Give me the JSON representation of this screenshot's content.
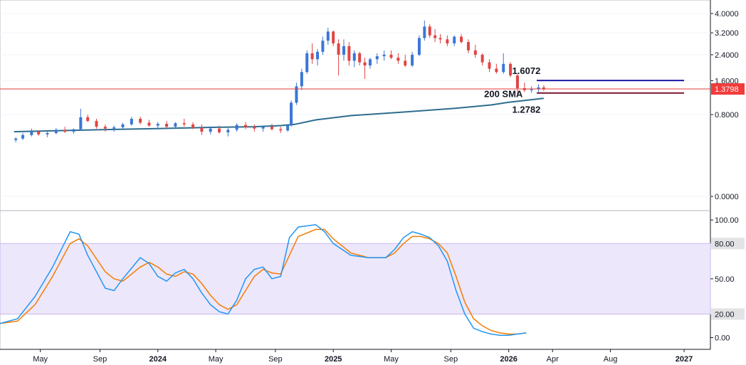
{
  "chart_data": {
    "type": "candlestick",
    "price_panel": {
      "y_ticks": [
        "4.0000",
        "3.2000",
        "2.4000",
        "1.6000",
        "0.8000",
        "0.0000"
      ],
      "ylim": [
        0,
        4.0
      ],
      "current_price": "1.3798",
      "current_price_value": 1.3798,
      "annotations": {
        "upper_level": {
          "label": "1.6072",
          "value": 1.6072,
          "color": "#1a1aa8"
        },
        "lower_level": {
          "label": "1.2782",
          "value": 1.2782,
          "color": "#7b1530"
        },
        "sma_label": "200 SMA"
      },
      "sma_200": [
        [
          2023.18,
          0.5
        ],
        [
          2023.5,
          0.52
        ],
        [
          2023.8,
          0.54
        ],
        [
          2024.0,
          0.55
        ],
        [
          2024.3,
          0.57
        ],
        [
          2024.55,
          0.58
        ],
        [
          2024.7,
          0.6
        ],
        [
          2024.78,
          0.62
        ],
        [
          2024.9,
          0.7
        ],
        [
          2025.1,
          0.78
        ],
        [
          2025.4,
          0.85
        ],
        [
          2025.7,
          0.93
        ],
        [
          2025.9,
          1.0
        ],
        [
          2026.0,
          1.06
        ],
        [
          2026.2,
          1.15
        ]
      ],
      "ohlc": [
        [
          2023.19,
          0.38,
          0.42,
          0.35,
          0.4
        ],
        [
          2023.23,
          0.4,
          0.48,
          0.38,
          0.45
        ],
        [
          2023.28,
          0.45,
          0.55,
          0.43,
          0.5
        ],
        [
          2023.32,
          0.5,
          0.52,
          0.44,
          0.46
        ],
        [
          2023.37,
          0.46,
          0.5,
          0.42,
          0.48
        ],
        [
          2023.42,
          0.48,
          0.56,
          0.46,
          0.53
        ],
        [
          2023.47,
          0.53,
          0.58,
          0.48,
          0.5
        ],
        [
          2023.52,
          0.5,
          0.55,
          0.47,
          0.54
        ],
        [
          2023.56,
          0.54,
          0.92,
          0.52,
          0.75
        ],
        [
          2023.6,
          0.75,
          0.8,
          0.66,
          0.68
        ],
        [
          2023.65,
          0.68,
          0.72,
          0.55,
          0.58
        ],
        [
          2023.7,
          0.58,
          0.62,
          0.5,
          0.55
        ],
        [
          2023.75,
          0.55,
          0.6,
          0.5,
          0.57
        ],
        [
          2023.8,
          0.57,
          0.65,
          0.55,
          0.62
        ],
        [
          2023.85,
          0.62,
          0.76,
          0.6,
          0.72
        ],
        [
          2023.9,
          0.72,
          0.76,
          0.62,
          0.65
        ],
        [
          2023.95,
          0.65,
          0.7,
          0.58,
          0.6
        ],
        [
          2024.0,
          0.6,
          0.66,
          0.55,
          0.63
        ],
        [
          2024.05,
          0.63,
          0.68,
          0.56,
          0.58
        ],
        [
          2024.1,
          0.58,
          0.66,
          0.55,
          0.64
        ],
        [
          2024.15,
          0.64,
          0.72,
          0.58,
          0.62
        ],
        [
          2024.2,
          0.62,
          0.66,
          0.54,
          0.56
        ],
        [
          2024.25,
          0.56,
          0.62,
          0.45,
          0.5
        ],
        [
          2024.3,
          0.5,
          0.58,
          0.46,
          0.55
        ],
        [
          2024.35,
          0.55,
          0.6,
          0.47,
          0.49
        ],
        [
          2024.4,
          0.49,
          0.56,
          0.43,
          0.53
        ],
        [
          2024.45,
          0.53,
          0.64,
          0.5,
          0.61
        ],
        [
          2024.5,
          0.61,
          0.66,
          0.54,
          0.57
        ],
        [
          2024.55,
          0.57,
          0.62,
          0.5,
          0.55
        ],
        [
          2024.6,
          0.55,
          0.6,
          0.5,
          0.58
        ],
        [
          2024.65,
          0.58,
          0.63,
          0.52,
          0.54
        ],
        [
          2024.7,
          0.54,
          0.58,
          0.48,
          0.52
        ],
        [
          2024.74,
          0.52,
          0.62,
          0.5,
          0.6
        ],
        [
          2024.76,
          0.6,
          1.1,
          0.58,
          1.05
        ],
        [
          2024.79,
          1.05,
          1.55,
          1.0,
          1.45
        ],
        [
          2024.82,
          1.45,
          1.95,
          1.35,
          1.85
        ],
        [
          2024.85,
          1.85,
          2.55,
          1.8,
          2.45
        ],
        [
          2024.88,
          2.45,
          2.8,
          2.1,
          2.25
        ],
        [
          2024.91,
          2.25,
          2.6,
          2.05,
          2.5
        ],
        [
          2024.94,
          2.5,
          3.05,
          2.4,
          2.9
        ],
        [
          2024.97,
          2.9,
          3.4,
          2.75,
          3.25
        ],
        [
          2025.0,
          3.25,
          3.3,
          2.7,
          2.8
        ],
        [
          2025.03,
          2.8,
          2.95,
          1.75,
          2.4
        ],
        [
          2025.06,
          2.4,
          2.95,
          2.2,
          2.7
        ],
        [
          2025.09,
          2.7,
          2.85,
          2.05,
          2.2
        ],
        [
          2025.12,
          2.2,
          2.55,
          2.0,
          2.45
        ],
        [
          2025.15,
          2.45,
          2.5,
          2.05,
          2.15
        ],
        [
          2025.18,
          2.15,
          2.3,
          1.65,
          2.05
        ],
        [
          2025.21,
          2.05,
          2.3,
          1.95,
          2.25
        ],
        [
          2025.25,
          2.25,
          2.45,
          2.1,
          2.35
        ],
        [
          2025.29,
          2.35,
          2.55,
          2.2,
          2.4
        ],
        [
          2025.33,
          2.4,
          2.55,
          2.25,
          2.3
        ],
        [
          2025.37,
          2.3,
          2.45,
          2.1,
          2.2
        ],
        [
          2025.41,
          2.2,
          2.4,
          2.0,
          2.05
        ],
        [
          2025.45,
          2.05,
          2.5,
          2.0,
          2.4
        ],
        [
          2025.49,
          2.4,
          3.1,
          2.35,
          3.0
        ],
        [
          2025.52,
          3.0,
          3.7,
          2.9,
          3.45
        ],
        [
          2025.55,
          3.45,
          3.55,
          3.0,
          3.1
        ],
        [
          2025.58,
          3.1,
          3.35,
          2.85,
          3.0
        ],
        [
          2025.61,
          3.0,
          3.15,
          2.8,
          2.95
        ],
        [
          2025.65,
          2.95,
          3.1,
          2.7,
          2.8
        ],
        [
          2025.69,
          2.8,
          3.1,
          2.7,
          3.05
        ],
        [
          2025.73,
          3.05,
          3.15,
          2.8,
          2.85
        ],
        [
          2025.77,
          2.85,
          2.95,
          2.45,
          2.55
        ],
        [
          2025.81,
          2.55,
          2.75,
          2.3,
          2.4
        ],
        [
          2025.85,
          2.4,
          2.45,
          2.05,
          2.15
        ],
        [
          2025.89,
          2.15,
          2.25,
          1.85,
          1.95
        ],
        [
          2025.93,
          1.95,
          2.1,
          1.8,
          1.85
        ],
        [
          2025.97,
          1.85,
          2.45,
          1.8,
          2.1
        ],
        [
          2026.01,
          2.1,
          2.15,
          1.7,
          1.75
        ],
        [
          2026.05,
          1.75,
          1.8,
          1.25,
          1.4
        ],
        [
          2026.09,
          1.4,
          1.55,
          1.3,
          1.35
        ],
        [
          2026.13,
          1.35,
          1.45,
          1.28,
          1.38
        ],
        [
          2026.17,
          1.38,
          1.5,
          1.3,
          1.42
        ],
        [
          2026.2,
          1.42,
          1.48,
          1.33,
          1.38
        ]
      ]
    },
    "x_axis": {
      "ticks": [
        {
          "label": "May",
          "x": 2023.33,
          "bold": false
        },
        {
          "label": "Sep",
          "x": 2023.67,
          "bold": false
        },
        {
          "label": "2024",
          "x": 2024.0,
          "bold": true
        },
        {
          "label": "May",
          "x": 2024.33,
          "bold": false
        },
        {
          "label": "Sep",
          "x": 2024.67,
          "bold": false
        },
        {
          "label": "2025",
          "x": 2025.0,
          "bold": true
        },
        {
          "label": "May",
          "x": 2025.33,
          "bold": false
        },
        {
          "label": "Sep",
          "x": 2025.67,
          "bold": false
        },
        {
          "label": "2026",
          "x": 2026.0,
          "bold": true
        },
        {
          "label": "Apr",
          "x": 2026.25,
          "bold": false
        },
        {
          "label": "Aug",
          "x": 2026.58,
          "bold": false
        },
        {
          "label": "2027",
          "x": 2027.0,
          "bold": true
        }
      ],
      "xlim": [
        2023.1,
        2027.15
      ]
    },
    "oscillator_panel": {
      "y_ticks": [
        "100.00",
        "50.00",
        "0.00"
      ],
      "band_labels": [
        "80.00",
        "20.00"
      ],
      "ylim": [
        -10,
        108
      ],
      "band": [
        20,
        80
      ],
      "band_color": "#ede7fb",
      "k_line": {
        "color": "#2196f3",
        "points": [
          [
            2023.1,
            12
          ],
          [
            2023.2,
            16
          ],
          [
            2023.3,
            35
          ],
          [
            2023.4,
            60
          ],
          [
            2023.5,
            90
          ],
          [
            2023.55,
            88
          ],
          [
            2023.6,
            70
          ],
          [
            2023.7,
            42
          ],
          [
            2023.75,
            40
          ],
          [
            2023.8,
            50
          ],
          [
            2023.9,
            68
          ],
          [
            2023.95,
            63
          ],
          [
            2024.0,
            52
          ],
          [
            2024.05,
            48
          ],
          [
            2024.1,
            55
          ],
          [
            2024.15,
            58
          ],
          [
            2024.2,
            50
          ],
          [
            2024.25,
            38
          ],
          [
            2024.3,
            28
          ],
          [
            2024.35,
            22
          ],
          [
            2024.4,
            20
          ],
          [
            2024.45,
            32
          ],
          [
            2024.5,
            50
          ],
          [
            2024.55,
            58
          ],
          [
            2024.6,
            60
          ],
          [
            2024.65,
            50
          ],
          [
            2024.7,
            52
          ],
          [
            2024.75,
            85
          ],
          [
            2024.8,
            94
          ],
          [
            2024.9,
            96
          ],
          [
            2024.95,
            90
          ],
          [
            2025.0,
            80
          ],
          [
            2025.05,
            75
          ],
          [
            2025.1,
            70
          ],
          [
            2025.2,
            68
          ],
          [
            2025.3,
            68
          ],
          [
            2025.35,
            75
          ],
          [
            2025.4,
            85
          ],
          [
            2025.45,
            90
          ],
          [
            2025.5,
            88
          ],
          [
            2025.55,
            85
          ],
          [
            2025.6,
            78
          ],
          [
            2025.65,
            65
          ],
          [
            2025.7,
            40
          ],
          [
            2025.75,
            20
          ],
          [
            2025.8,
            8
          ],
          [
            2025.85,
            5
          ],
          [
            2025.9,
            3
          ],
          [
            2025.95,
            2
          ],
          [
            2026.0,
            2
          ],
          [
            2026.05,
            3
          ],
          [
            2026.1,
            4
          ]
        ]
      },
      "d_line": {
        "color": "#f57c00",
        "points": [
          [
            2023.1,
            12
          ],
          [
            2023.2,
            14
          ],
          [
            2023.3,
            28
          ],
          [
            2023.4,
            52
          ],
          [
            2023.5,
            80
          ],
          [
            2023.55,
            84
          ],
          [
            2023.6,
            78
          ],
          [
            2023.7,
            56
          ],
          [
            2023.75,
            50
          ],
          [
            2023.8,
            48
          ],
          [
            2023.9,
            60
          ],
          [
            2023.95,
            64
          ],
          [
            2024.0,
            60
          ],
          [
            2024.05,
            54
          ],
          [
            2024.1,
            52
          ],
          [
            2024.15,
            56
          ],
          [
            2024.2,
            54
          ],
          [
            2024.25,
            46
          ],
          [
            2024.3,
            36
          ],
          [
            2024.35,
            28
          ],
          [
            2024.4,
            24
          ],
          [
            2024.45,
            28
          ],
          [
            2024.5,
            40
          ],
          [
            2024.55,
            52
          ],
          [
            2024.6,
            58
          ],
          [
            2024.65,
            55
          ],
          [
            2024.7,
            54
          ],
          [
            2024.75,
            70
          ],
          [
            2024.8,
            86
          ],
          [
            2024.9,
            92
          ],
          [
            2024.95,
            92
          ],
          [
            2025.0,
            84
          ],
          [
            2025.05,
            78
          ],
          [
            2025.1,
            72
          ],
          [
            2025.2,
            68
          ],
          [
            2025.3,
            68
          ],
          [
            2025.35,
            72
          ],
          [
            2025.4,
            80
          ],
          [
            2025.45,
            86
          ],
          [
            2025.5,
            86
          ],
          [
            2025.55,
            84
          ],
          [
            2025.6,
            80
          ],
          [
            2025.65,
            72
          ],
          [
            2025.7,
            52
          ],
          [
            2025.75,
            30
          ],
          [
            2025.8,
            16
          ],
          [
            2025.85,
            10
          ],
          [
            2025.9,
            6
          ],
          [
            2025.95,
            4
          ],
          [
            2026.0,
            3
          ],
          [
            2026.05,
            3
          ],
          [
            2026.1,
            4
          ]
        ]
      }
    },
    "colors": {
      "up": "#3a77d6",
      "down": "#e04545",
      "sma": "#2e6d8e",
      "current_line": "#e53935",
      "current_tag_bg": "#f23b3b",
      "axis_line": "#131722",
      "oscillator_band_edge": "#c8b8ef"
    }
  }
}
